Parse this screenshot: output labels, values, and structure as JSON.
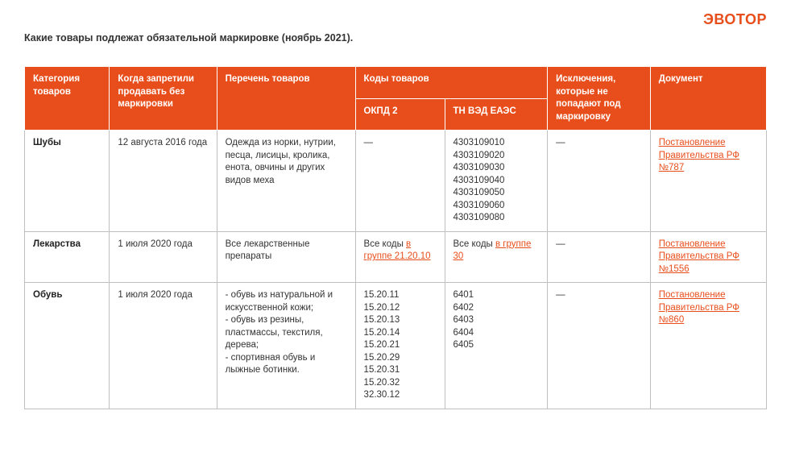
{
  "brand": {
    "text": "ЭВОТОР",
    "color": "#e84e1b"
  },
  "title": "Какие товары подлежат обязательной маркировке (ноябрь 2021).",
  "colors": {
    "header_bg": "#e84e1b",
    "header_fg": "#ffffff",
    "link": "#e84e1b",
    "border": "#bfbfbf",
    "text": "#333333"
  },
  "columns": {
    "category": "Категория товаров",
    "date": "Когда запретили продавать без маркировки",
    "list": "Перечень товаров",
    "codes_group": "Коды товаров",
    "okpd": "ОКПД 2",
    "tnved": "ТН ВЭД ЕАЭС",
    "exclusions": "Исключения, которые не попадают под маркировку",
    "document": "Документ"
  },
  "rows": [
    {
      "category": "Шубы",
      "date": "12 августа 2016 года",
      "list": "Одежда из норки, нутрии, песца, лисицы, кролика, енота, овчины и других видов меха",
      "okpd_text": "—",
      "tnved_text": "4303109010\n4303109020\n4303109030\n4303109040\n4303109050\n4303109060\n4303109080",
      "exclusions": "—",
      "doc_text": "Постановление Правительства РФ №787"
    },
    {
      "category": "Лекарства",
      "date": "1 июля 2020 года",
      "list": "Все лекарственные препараты",
      "okpd_prefix": "Все коды ",
      "okpd_link": "в группе 21.20.10",
      "tnved_prefix": "Все коды ",
      "tnved_link": "в группе 30",
      "exclusions": "—",
      "doc_text": "Постановление Правительства РФ №1556"
    },
    {
      "category": "Обувь",
      "date": "1 июля 2020 года",
      "list": "- обувь из натуральной и искусственной кожи;\n- обувь из резины, пластмассы, текстиля, дерева;\n- спортивная обувь и лыжные ботинки.",
      "okpd_text": "15.20.11\n15.20.12\n15.20.13\n15.20.14\n15.20.21\n15.20.29\n15.20.31\n15.20.32\n32.30.12",
      "tnved_text": "6401\n6402\n6403\n6404\n6405",
      "exclusions": "—",
      "doc_text": "Постановление Правительства РФ №860"
    }
  ]
}
